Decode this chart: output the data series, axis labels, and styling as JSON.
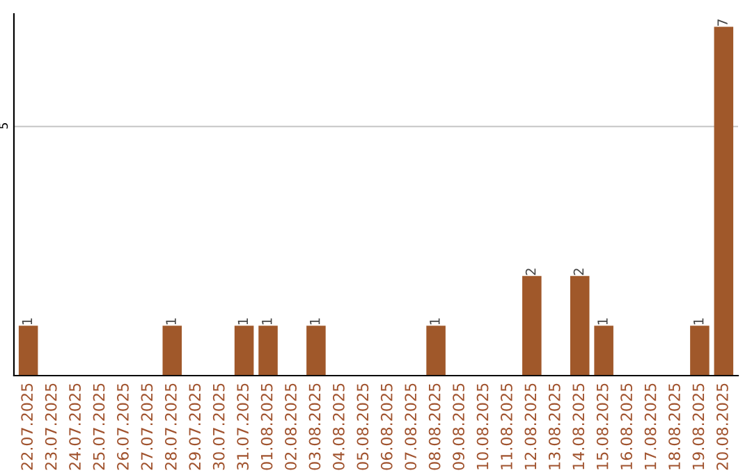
{
  "chart_data": {
    "type": "bar",
    "categories": [
      "22.07.2025",
      "23.07.2025",
      "24.07.2025",
      "25.07.2025",
      "26.07.2025",
      "27.07.2025",
      "28.07.2025",
      "29.07.2025",
      "30.07.2025",
      "31.07.2025",
      "01.08.2025",
      "02.08.2025",
      "03.08.2025",
      "04.08.2025",
      "05.08.2025",
      "06.08.2025",
      "07.08.2025",
      "08.08.2025",
      "09.08.2025",
      "10.08.2025",
      "11.08.2025",
      "12.08.2025",
      "13.08.2025",
      "14.08.2025",
      "15.08.2025",
      "16.08.2025",
      "17.08.2025",
      "18.08.2025",
      "19.08.2025",
      "20.08.2025"
    ],
    "values": [
      1,
      0,
      0,
      0,
      0,
      0,
      1,
      0,
      0,
      1,
      1,
      0,
      1,
      0,
      0,
      0,
      0,
      1,
      0,
      0,
      0,
      2,
      0,
      2,
      1,
      0,
      0,
      0,
      1,
      7
    ],
    "value_labels": [
      "1",
      null,
      null,
      null,
      null,
      null,
      "1",
      null,
      null,
      "1",
      "1",
      null,
      "1",
      null,
      null,
      null,
      null,
      "1",
      null,
      null,
      null,
      "2",
      null,
      "2",
      "1",
      null,
      null,
      null,
      "1",
      "7"
    ],
    "color": "#a0582a",
    "ylim": [
      0,
      7.26
    ],
    "yticks": [
      5
    ],
    "grid": "y"
  }
}
